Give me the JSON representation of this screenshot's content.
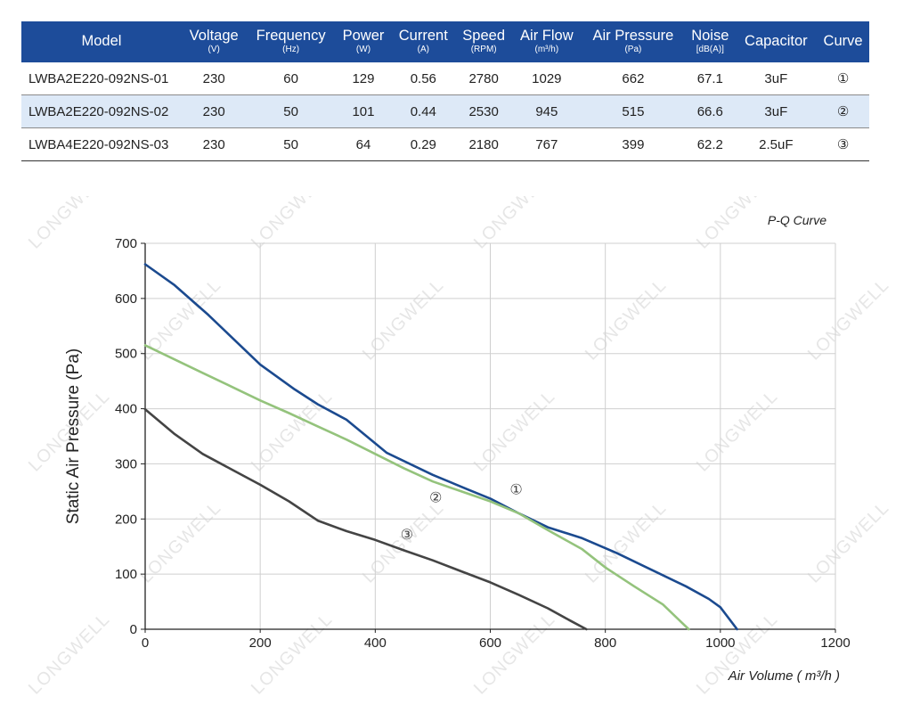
{
  "table": {
    "headers": [
      {
        "main": "Model",
        "unit": ""
      },
      {
        "main": "Voltage",
        "unit": "(V)"
      },
      {
        "main": "Frequency",
        "unit": "(Hz)"
      },
      {
        "main": "Power",
        "unit": "(W)"
      },
      {
        "main": "Current",
        "unit": "(A)"
      },
      {
        "main": "Speed",
        "unit": "(RPM)"
      },
      {
        "main": "Air Flow",
        "unit": "(m³/h)"
      },
      {
        "main": "Air Pressure",
        "unit": "(Pa)"
      },
      {
        "main": "Noise",
        "unit": "[dB(A)]"
      },
      {
        "main": "Capacitor",
        "unit": ""
      },
      {
        "main": "Curve",
        "unit": ""
      }
    ],
    "rows": [
      [
        "LWBA2E220-092NS-01",
        "230",
        "60",
        "129",
        "0.56",
        "2780",
        "1029",
        "662",
        "67.1",
        "3uF",
        "①"
      ],
      [
        "LWBA2E220-092NS-02",
        "230",
        "50",
        "101",
        "0.44",
        "2530",
        "945",
        "515",
        "66.6",
        "3uF",
        "②"
      ],
      [
        "LWBA4E220-092NS-03",
        "230",
        "50",
        "64",
        "0.29",
        "2180",
        "767",
        "399",
        "62.2",
        "2.5uF",
        "③"
      ]
    ]
  },
  "watermark": "LONGWELL",
  "chart_data": {
    "type": "line",
    "title": "P-Q Curve",
    "xlabel": "Air Volume ( m³/h )",
    "ylabel": "Static Air Pressure  (Pa)",
    "xlim": [
      0,
      1200
    ],
    "ylim": [
      0,
      700
    ],
    "xticks": [
      0,
      200,
      400,
      600,
      800,
      1000,
      1200
    ],
    "yticks": [
      0,
      100,
      200,
      300,
      400,
      500,
      600,
      700
    ],
    "grid": true,
    "series": [
      {
        "name": "①",
        "color": "#1b4a8f",
        "label_at": [
          645,
          245
        ],
        "points": [
          [
            0,
            662
          ],
          [
            50,
            625
          ],
          [
            110,
            570
          ],
          [
            150,
            530
          ],
          [
            200,
            480
          ],
          [
            260,
            435
          ],
          [
            300,
            408
          ],
          [
            350,
            380
          ],
          [
            420,
            320
          ],
          [
            500,
            280
          ],
          [
            560,
            254
          ],
          [
            600,
            237
          ],
          [
            650,
            210
          ],
          [
            700,
            185
          ],
          [
            760,
            165
          ],
          [
            820,
            138
          ],
          [
            880,
            108
          ],
          [
            940,
            78
          ],
          [
            980,
            55
          ],
          [
            1000,
            40
          ],
          [
            1029,
            0
          ]
        ]
      },
      {
        "name": "②",
        "color": "#94c37c",
        "label_at": [
          505,
          230
        ],
        "points": [
          [
            0,
            515
          ],
          [
            50,
            490
          ],
          [
            100,
            465
          ],
          [
            150,
            440
          ],
          [
            200,
            415
          ],
          [
            250,
            392
          ],
          [
            300,
            368
          ],
          [
            350,
            344
          ],
          [
            400,
            318
          ],
          [
            450,
            292
          ],
          [
            500,
            268
          ],
          [
            550,
            250
          ],
          [
            600,
            232
          ],
          [
            650,
            210
          ],
          [
            700,
            180
          ],
          [
            760,
            145
          ],
          [
            800,
            112
          ],
          [
            850,
            78
          ],
          [
            900,
            45
          ],
          [
            945,
            0
          ]
        ]
      },
      {
        "name": "③",
        "color": "#444444",
        "label_at": [
          455,
          163
        ],
        "points": [
          [
            0,
            399
          ],
          [
            50,
            355
          ],
          [
            100,
            318
          ],
          [
            150,
            290
          ],
          [
            200,
            262
          ],
          [
            250,
            232
          ],
          [
            300,
            197
          ],
          [
            350,
            178
          ],
          [
            400,
            162
          ],
          [
            450,
            143
          ],
          [
            500,
            125
          ],
          [
            550,
            105
          ],
          [
            600,
            85
          ],
          [
            650,
            62
          ],
          [
            700,
            38
          ],
          [
            740,
            15
          ],
          [
            767,
            0
          ]
        ]
      }
    ]
  }
}
